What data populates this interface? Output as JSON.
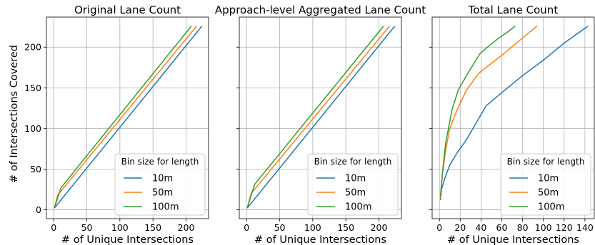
{
  "figure": {
    "ylabel": "# of Intersections Covered",
    "colors": {
      "10m": "#1f77b4",
      "50m": "#ff7f0e",
      "100m": "#2ca02c"
    }
  },
  "chart_data": [
    {
      "type": "line",
      "title": "Original Lane Count",
      "xlabel": "# of Unique Intersections",
      "ylabel": "# of Intersections Covered",
      "xlim": [
        -11,
        234
      ],
      "ylim": [
        -11,
        237
      ],
      "xticks": [
        0,
        50,
        100,
        150,
        200
      ],
      "yticks": [
        0,
        50,
        100,
        150,
        200
      ],
      "grid": true,
      "legend": {
        "title": "Bin size for length",
        "position": "lower-right"
      },
      "series": [
        {
          "name": "10m",
          "color": "#1f77b4",
          "x": [
            1,
            224
          ],
          "y": [
            2,
            226
          ]
        },
        {
          "name": "50m",
          "color": "#ff7f0e",
          "x": [
            1,
            6,
            216
          ],
          "y": [
            2,
            18,
            226
          ]
        },
        {
          "name": "100m",
          "color": "#2ca02c",
          "x": [
            1,
            11,
            208
          ],
          "y": [
            2,
            27,
            226
          ]
        }
      ]
    },
    {
      "type": "line",
      "title": "Approach-level Aggregated Lane Count",
      "xlabel": "# of Unique Intersections",
      "xlim": [
        -11,
        234
      ],
      "ylim": [
        -11,
        237
      ],
      "xticks": [
        0,
        50,
        100,
        150,
        200
      ],
      "grid": true,
      "legend": {
        "title": "Bin size for length",
        "position": "lower-right"
      },
      "series": [
        {
          "name": "10m",
          "color": "#1f77b4",
          "x": [
            1,
            224
          ],
          "y": [
            2,
            226
          ]
        },
        {
          "name": "50m",
          "color": "#ff7f0e",
          "x": [
            1,
            7,
            216
          ],
          "y": [
            2,
            20,
            226
          ]
        },
        {
          "name": "100m",
          "color": "#2ca02c",
          "x": [
            1,
            12,
            207
          ],
          "y": [
            2,
            31,
            226
          ]
        }
      ]
    },
    {
      "type": "line",
      "title": "Total Lane Count",
      "xlabel": "# of Unique Intersections",
      "xlim": [
        -7,
        149
      ],
      "ylim": [
        -11,
        237
      ],
      "xticks": [
        0,
        20,
        40,
        60,
        80,
        100,
        120,
        140
      ],
      "grid": true,
      "legend": {
        "title": "Bin size for length",
        "position": "lower-right"
      },
      "series": [
        {
          "name": "10m",
          "color": "#1f77b4",
          "x": [
            1,
            2,
            5,
            10,
            17,
            26,
            35,
            45,
            60,
            80,
            100,
            120,
            143
          ],
          "y": [
            12,
            25,
            38,
            55,
            70,
            86,
            106,
            128,
            144,
            165,
            184,
            205,
            226
          ]
        },
        {
          "name": "50m",
          "color": "#ff7f0e",
          "x": [
            1,
            3,
            6,
            10,
            17,
            26,
            38,
            50,
            62,
            75,
            94
          ],
          "y": [
            15,
            45,
            73,
            100,
            123,
            147,
            168,
            180,
            192,
            206,
            226
          ]
        },
        {
          "name": "100m",
          "color": "#2ca02c",
          "x": [
            1,
            3,
            6,
            12,
            18,
            26,
            39,
            48,
            57,
            66,
            73
          ],
          "y": [
            17,
            47,
            82,
            122,
            147,
            165,
            192,
            202,
            211,
            219,
            226
          ]
        }
      ]
    }
  ]
}
